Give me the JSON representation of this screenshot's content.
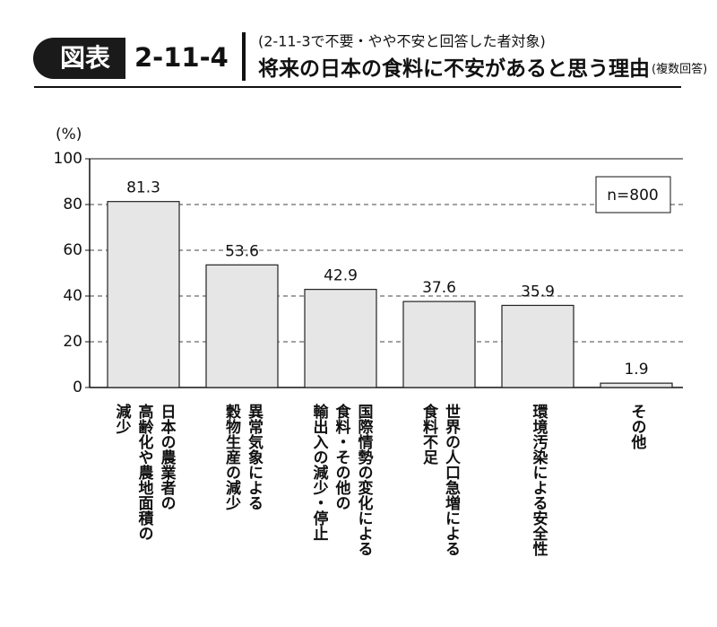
{
  "header": {
    "badge": "図表",
    "number": "2-11-4",
    "subtitle": "(2-11-3で不要・やや不安と回答した者対象)",
    "title": "将来の日本の食料に不安があると思う理由",
    "note": "(複数回答)"
  },
  "chart_data": {
    "type": "bar",
    "y_label": "(%)",
    "annotation": "n=800",
    "categories": [
      "日本の農業者の\n高齢化や農地面積の\n減少",
      "異常気象による\n穀物生産の減少",
      "国際情勢の変化による\n食料・その他の\n輸出入の減少・停止",
      "世界の人口急増による\n食料不足",
      "環境汚染による安全性",
      "その他"
    ],
    "values": [
      81.3,
      53.6,
      42.9,
      37.6,
      35.9,
      1.9
    ],
    "color": "#e6e6e6",
    "ylim": [
      0,
      100
    ],
    "yticks": [
      0,
      20,
      40,
      60,
      80,
      100
    ],
    "grid": true
  }
}
